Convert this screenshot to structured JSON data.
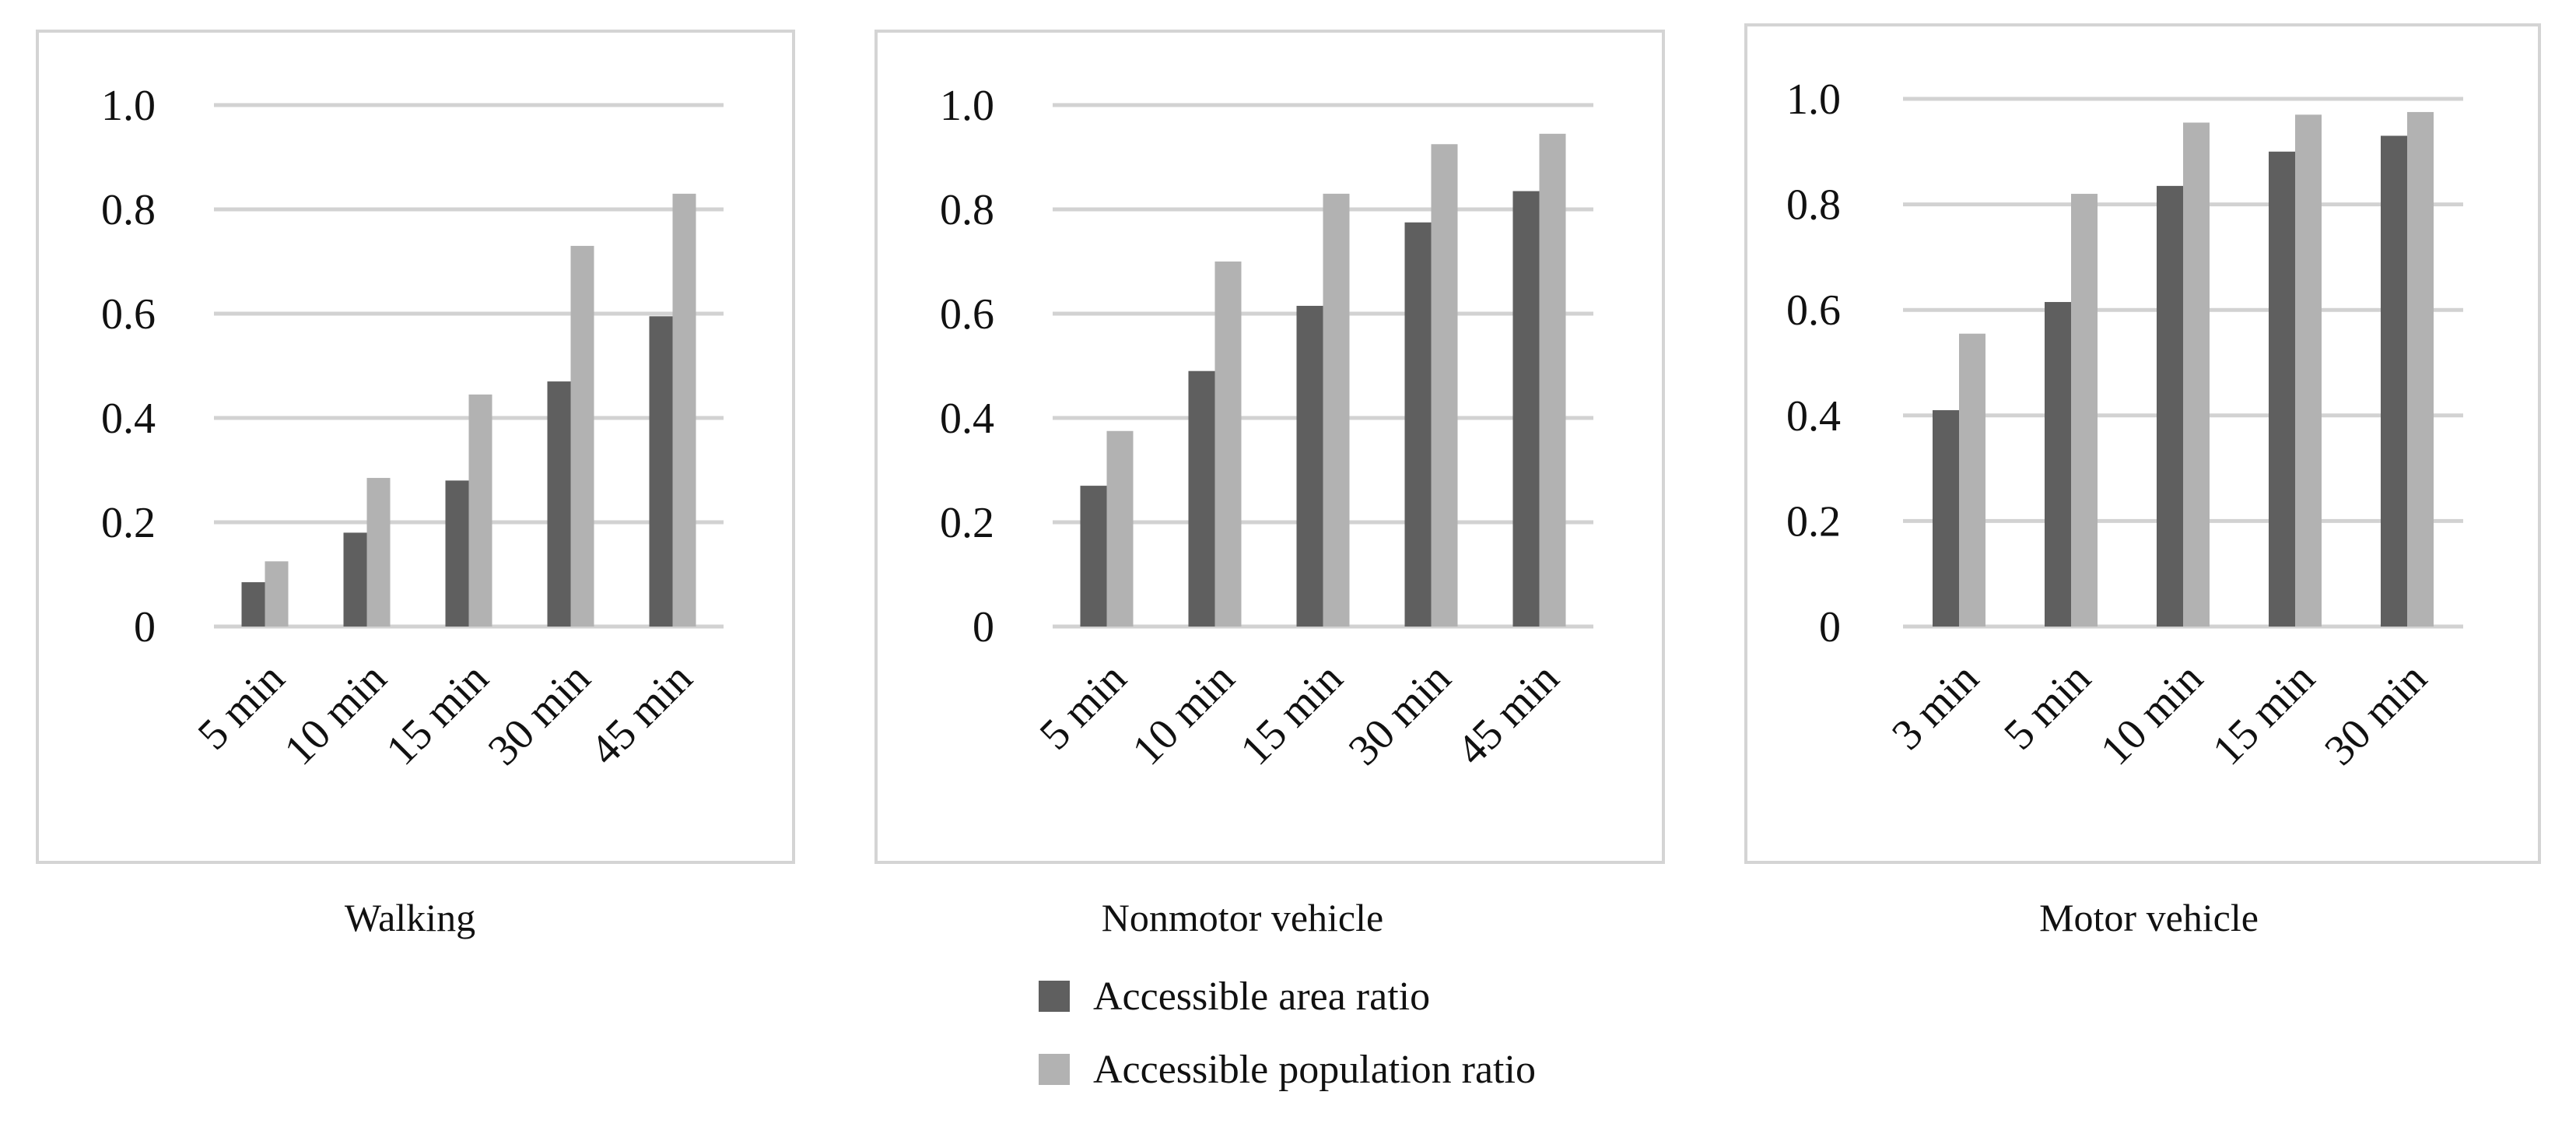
{
  "colors": {
    "area": "#5f5f5f",
    "population": "#b2b2b2",
    "gridline": "#d2d2d2",
    "panel_border": "#d4d4d4"
  },
  "legend": {
    "area_label": "Accessible area ratio",
    "population_label": "Accessible population ratio"
  },
  "chart_data": [
    {
      "type": "bar",
      "title": "Walking",
      "categories": [
        "5 min",
        "10 min",
        "15 min",
        "30 min",
        "45 min"
      ],
      "series": [
        {
          "name": "Accessible area ratio",
          "values": [
            0.085,
            0.18,
            0.28,
            0.47,
            0.595
          ]
        },
        {
          "name": "Accessible population ratio",
          "values": [
            0.125,
            0.285,
            0.445,
            0.73,
            0.83
          ]
        }
      ],
      "ylim": [
        0,
        1.0
      ],
      "yticks": [
        "0",
        "0.2",
        "0.4",
        "0.6",
        "0.8",
        "1.0"
      ],
      "grid": true
    },
    {
      "type": "bar",
      "title": "Nonmotor vehicle",
      "categories": [
        "5 min",
        "10 min",
        "15 min",
        "30 min",
        "45 min"
      ],
      "series": [
        {
          "name": "Accessible area ratio",
          "values": [
            0.27,
            0.49,
            0.615,
            0.775,
            0.835
          ]
        },
        {
          "name": "Accessible population ratio",
          "values": [
            0.375,
            0.7,
            0.83,
            0.925,
            0.945
          ]
        }
      ],
      "ylim": [
        0,
        1.0
      ],
      "yticks": [
        "0",
        "0.2",
        "0.4",
        "0.6",
        "0.8",
        "1.0"
      ],
      "grid": true
    },
    {
      "type": "bar",
      "title": "Motor vehicle",
      "categories": [
        "3 min",
        "5 min",
        "10 min",
        "15 min",
        "30 min"
      ],
      "series": [
        {
          "name": "Accessible area ratio",
          "values": [
            0.41,
            0.615,
            0.835,
            0.9,
            0.93
          ]
        },
        {
          "name": "Accessible population ratio",
          "values": [
            0.555,
            0.82,
            0.955,
            0.97,
            0.975
          ]
        }
      ],
      "ylim": [
        0,
        1.0
      ],
      "yticks": [
        "0",
        "0.2",
        "0.4",
        "0.6",
        "0.8",
        "1.0"
      ],
      "grid": true
    }
  ]
}
